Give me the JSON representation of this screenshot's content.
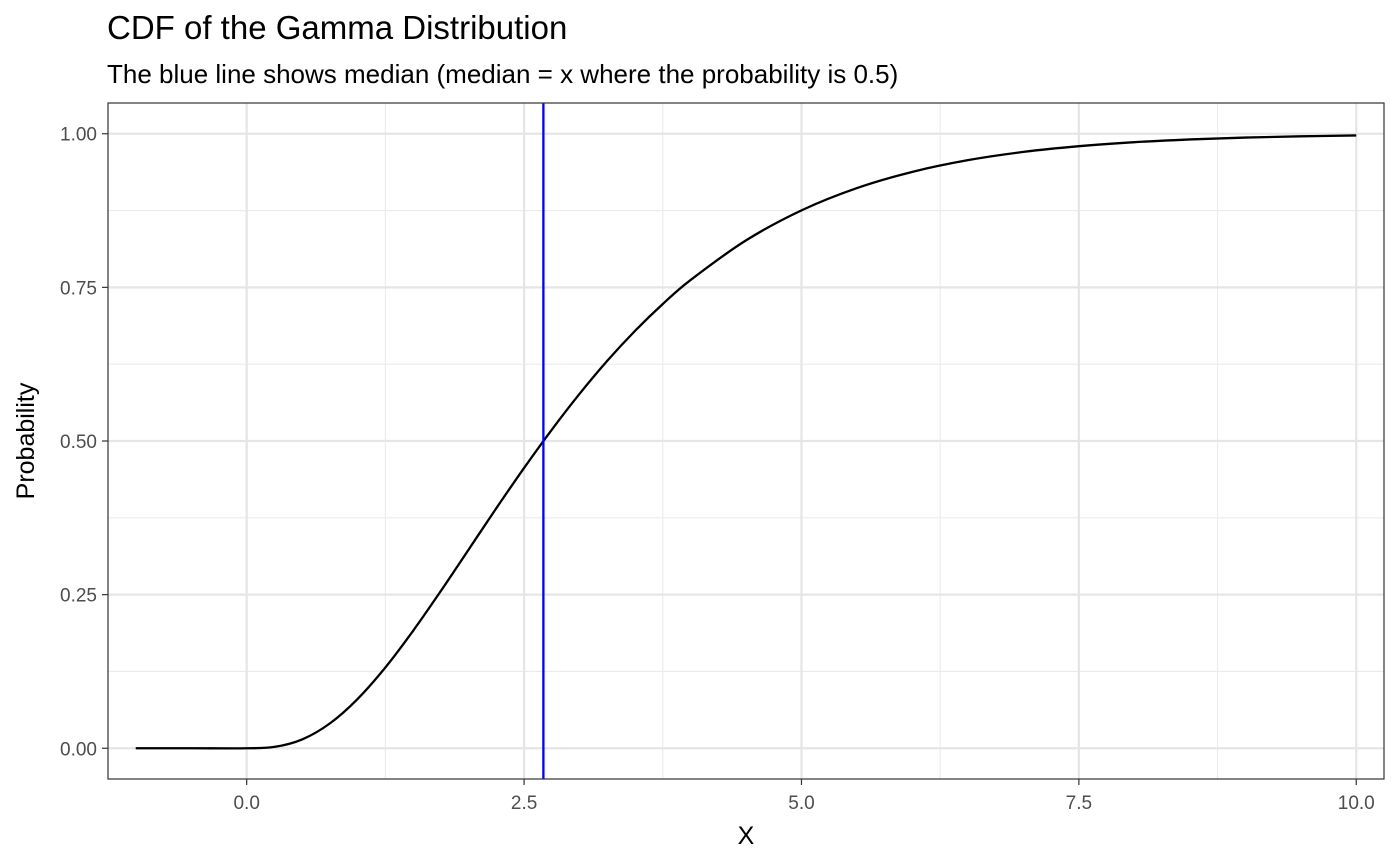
{
  "chart_data": {
    "type": "line",
    "title": "CDF of the Gamma Distribution",
    "subtitle": "The blue line shows median (median = x where the probability is 0.5)",
    "xlabel": "X",
    "ylabel": "Probability",
    "xlim": [
      -1.25,
      10.25
    ],
    "ylim": [
      -0.05,
      1.05
    ],
    "x_ticks": [
      0.0,
      2.5,
      5.0,
      7.5,
      10.0
    ],
    "x_tick_labels": [
      "0.0",
      "2.5",
      "5.0",
      "7.5",
      "10.0"
    ],
    "y_ticks": [
      0.0,
      0.25,
      0.5,
      0.75,
      1.0
    ],
    "y_tick_labels": [
      "0.00",
      "0.25",
      "0.50",
      "0.75",
      "1.00"
    ],
    "grid": true,
    "legend": "none",
    "series": [
      {
        "color": "#000000",
        "x": [
          -1.0,
          -0.5,
          0.0,
          0.25,
          0.5,
          0.75,
          1.0,
          1.25,
          1.5,
          1.75,
          2.0,
          2.25,
          2.5,
          2.75,
          3.0,
          3.25,
          3.5,
          3.75,
          4.0,
          4.5,
          5.0,
          5.5,
          6.0,
          6.5,
          7.0,
          7.5,
          8.0,
          8.5,
          9.0,
          9.5,
          10.0
        ],
        "y": [
          0.0,
          0.0,
          0.0,
          0.0022,
          0.0144,
          0.0405,
          0.0803,
          0.1315,
          0.1912,
          0.256,
          0.3233,
          0.3907,
          0.4562,
          0.5185,
          0.5768,
          0.6306,
          0.6792,
          0.7229,
          0.7619,
          0.8264,
          0.8753,
          0.9116,
          0.938,
          0.957,
          0.9704,
          0.9797,
          0.9862,
          0.9907,
          0.9938,
          0.9958,
          0.9972
        ]
      }
    ],
    "vline": {
      "x": 2.674,
      "color": "#0000ff",
      "label": "median"
    }
  }
}
